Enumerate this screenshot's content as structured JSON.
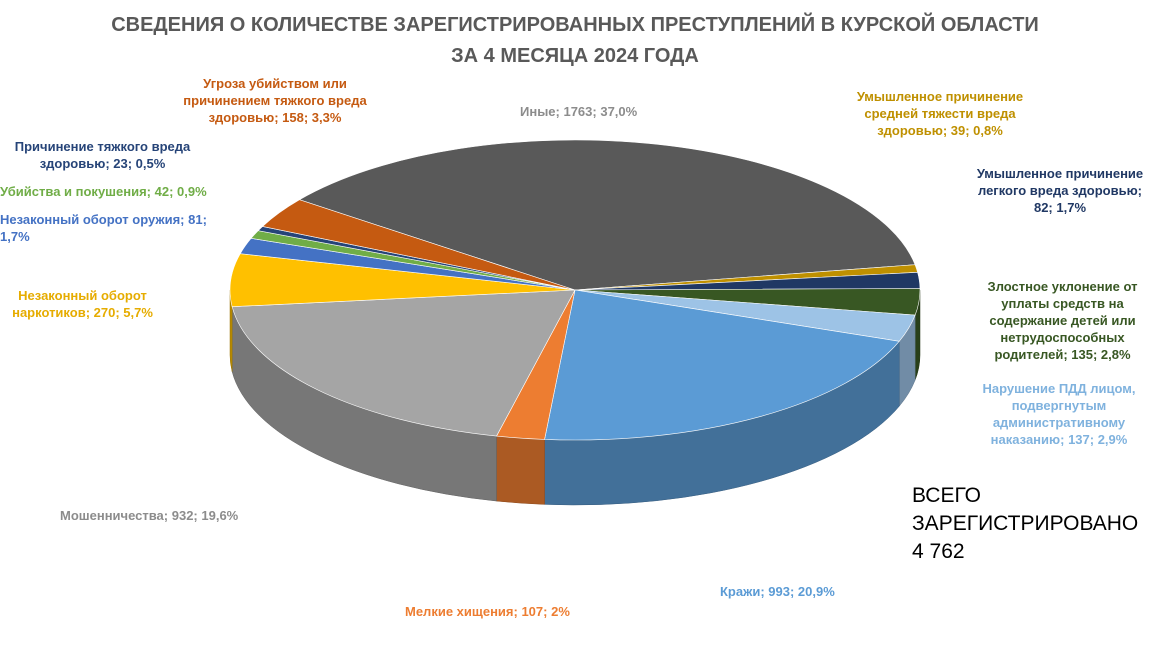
{
  "chart_data": {
    "type": "pie",
    "title": "СВЕДЕНИЯ О КОЛИЧЕСТВЕ ЗАРЕГИСТРИРОВАННЫХ ПРЕСТУПЛЕНИЙ В КУРСКОЙ ОБЛАСТИ ЗА 4 МЕСЯЦА 2024 ГОДА",
    "annotation": "ВСЕГО ЗАРЕГИСТРИРОВАНО 4 762",
    "categories": [
      "Иные",
      "Умышленное причинение средней тяжести вреда здоровью",
      "Умышленное причинение легкого вреда здоровью",
      "Злостное уклонение от уплаты средств на содержание детей или нетрудоспособных родителей",
      "Нарушение ПДД лицом, подвергнутым административному наказанию",
      "Кражи",
      "Мелкие хищения",
      "Мошенничества",
      "Незаконный оборот наркотиков",
      "Незаконный оборот оружия",
      "Убийства и покушения",
      "Причинение тяжкого вреда здоровью",
      "Угроза убийством или причинением тяжкого вреда здоровью"
    ],
    "values": [
      1763,
      39,
      82,
      135,
      137,
      993,
      107,
      932,
      270,
      81,
      42,
      23,
      158
    ],
    "value_labels": [
      "; 1763; 37,0%",
      "; 39; 0,8%",
      "; 82; 1,7%",
      "; 135; 2,8%",
      "; 137; 2,9%",
      "; 993; 20,9%",
      "; 107; 2%",
      "; 932; 19,6%",
      "; 270; 5,7%",
      "; 81; 1,7%",
      "; 42; 0,9%",
      "; 23; 0,5%",
      "; 158; 3,3%"
    ],
    "colors": [
      "#595959",
      "#bf9000",
      "#203864",
      "#385723",
      "#9dc3e6",
      "#5b9bd5",
      "#ed7d31",
      "#a5a5a5",
      "#ffc000",
      "#4472c4",
      "#70ad47",
      "#264478",
      "#c55a11"
    ]
  }
}
